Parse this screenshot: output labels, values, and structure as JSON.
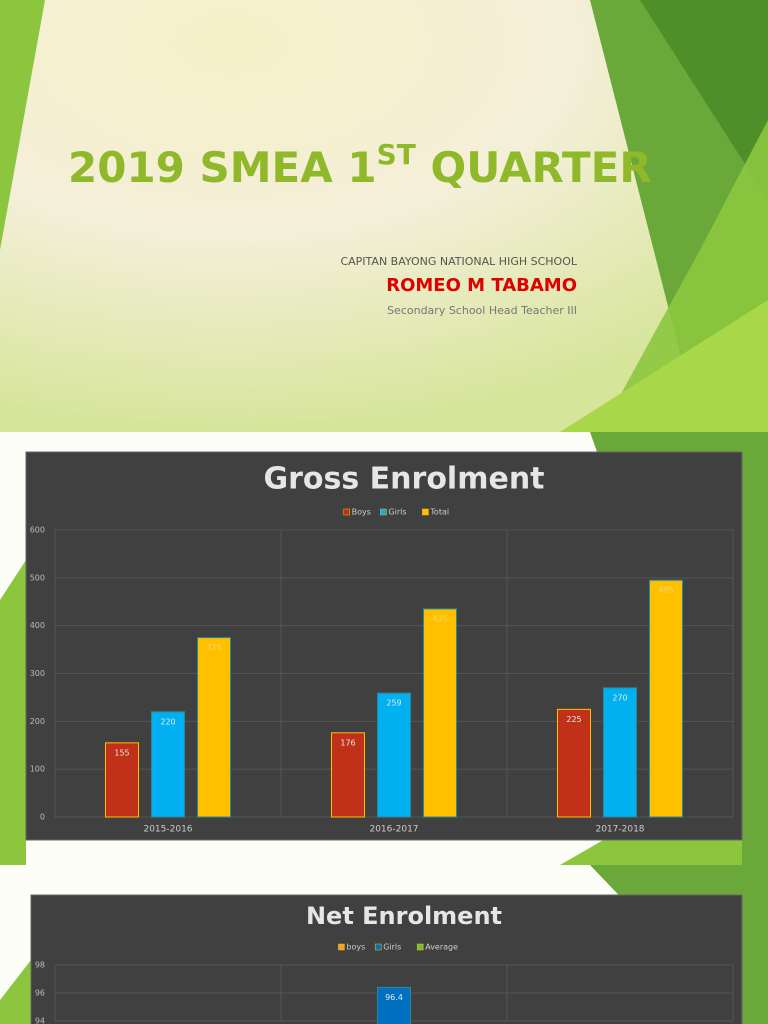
{
  "slide": {
    "title_parts": [
      "2019 SMEA 1",
      "ST",
      " QUARTER"
    ],
    "school": "CAPITAN BAYONG NATIONAL HIGH SCHOOL",
    "name": "ROMEO M TABAMO",
    "position": "Secondary School Head Teacher III"
  },
  "chart_data": [
    {
      "type": "bar",
      "title": "Gross Enrolment",
      "categories": [
        "2015-2016",
        "2016-2017",
        "2017-2018"
      ],
      "series": [
        {
          "name": "Boys",
          "color": "#c1311a",
          "values": [
            155,
            176,
            225
          ]
        },
        {
          "name": "Girls",
          "color": "#00b0f0",
          "values": [
            220,
            259,
            270
          ]
        },
        {
          "name": "Total",
          "color": "#ffc000",
          "values": [
            375,
            435,
            495
          ]
        }
      ],
      "ylim": [
        0,
        600
      ],
      "yticks": [
        0,
        100,
        200,
        300,
        400,
        500,
        600
      ],
      "grid": true
    },
    {
      "type": "bar",
      "title": "Net Enrolment",
      "categories": [
        null,
        null,
        null
      ],
      "series": [
        {
          "name": "boys",
          "color": "#f0a030",
          "values": [
            null,
            null,
            null
          ]
        },
        {
          "name": "Girls",
          "color": "#0070c0",
          "values": [
            null,
            96.4,
            null
          ]
        },
        {
          "name": "Average",
          "color": "#70c040",
          "values": [
            null,
            null,
            null
          ]
        }
      ],
      "ylim": [
        94,
        98
      ],
      "yticks": [
        94,
        96,
        98
      ],
      "grid": true
    }
  ]
}
